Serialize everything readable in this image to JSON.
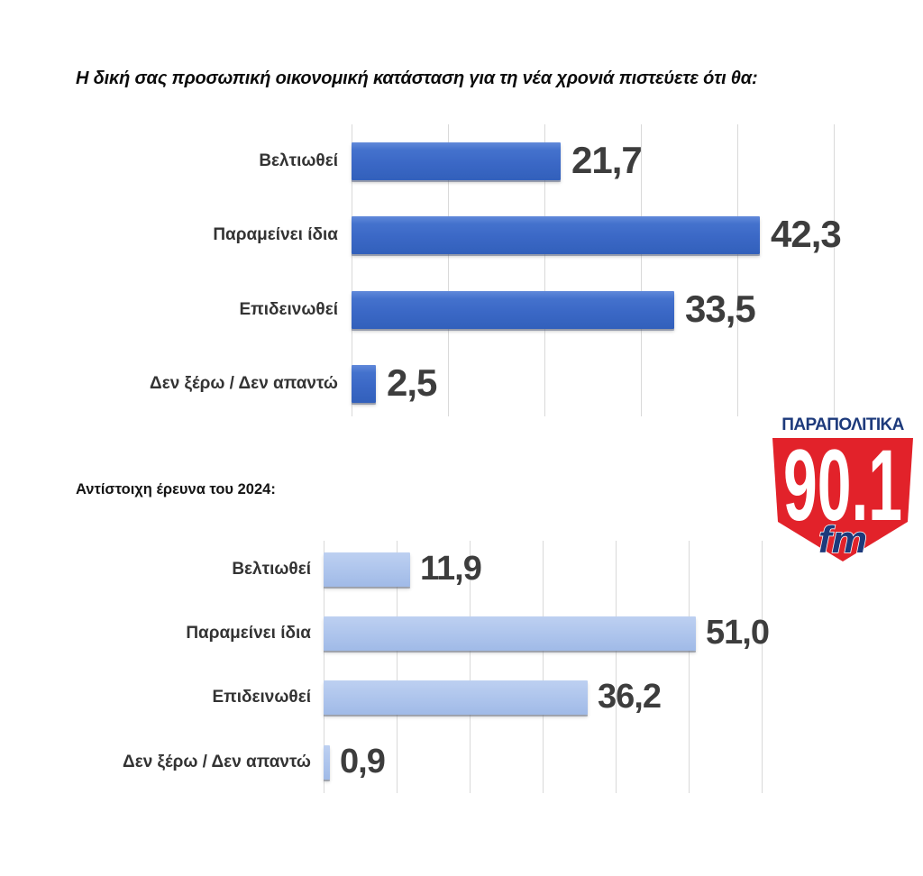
{
  "page_title": "Η δική σας προσωπική οικονομική κατάσταση για τη νέα χρονιά πιστεύετε ότι θα:",
  "logo": {
    "brand": "ΠΑΡΑΠΟΛΙΤΙΚΑ",
    "frequency": "90.1",
    "band": "fm",
    "navy_color": "#1d3a7b",
    "red_color": "#e2222a"
  },
  "colors": {
    "bar_current": "#3b68c6",
    "bar_2024": "#a9c1ea",
    "gridline": "#d9d9d9",
    "value_text": "#3d3d3d",
    "category_text": "#333333"
  },
  "chart_data": [
    {
      "id": "current_survey",
      "type": "bar",
      "orientation": "horizontal",
      "title": "Η δική σας προσωπική οικονομική κατάσταση για τη νέα χρονιά πιστεύετε ότι θα:",
      "categories": [
        "Βελτιωθεί",
        "Παραμείνει ίδια",
        "Επιδεινωθεί",
        "Δεν ξέρω / Δεν απαντώ"
      ],
      "values": [
        21.7,
        42.3,
        33.5,
        2.5
      ],
      "value_labels": [
        "21,7",
        "42,3",
        "33,5",
        "2,5"
      ],
      "xlim": [
        0,
        50
      ],
      "gridline_step": 10,
      "grid": true,
      "legend": "none",
      "bar_color": "#3b68c6"
    },
    {
      "id": "survey_2024",
      "type": "bar",
      "orientation": "horizontal",
      "title": "Αντίστοιχη έρευνα του 2024:",
      "categories": [
        "Βελτιωθεί",
        "Παραμείνει ίδια",
        "Επιδεινωθεί",
        "Δεν ξέρω / Δεν απαντώ"
      ],
      "values": [
        11.9,
        51.0,
        36.2,
        0.9
      ],
      "value_labels": [
        "11,9",
        "51,0",
        "36,2",
        "0,9"
      ],
      "xlim": [
        0,
        60
      ],
      "gridline_step": 10,
      "grid": true,
      "legend": "none",
      "bar_color": "#a9c1ea"
    }
  ]
}
